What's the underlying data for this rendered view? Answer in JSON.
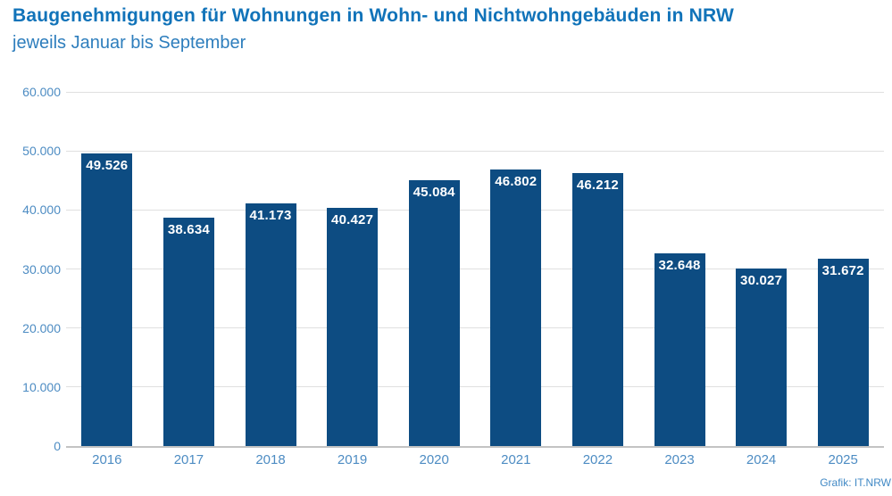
{
  "header": {
    "title": "Baugenehmigungen für Wohnungen in Wohn- und Nichtwohngebäuden in NRW",
    "subtitle": "jeweils Januar bis September"
  },
  "footer": {
    "credit": "Grafik: IT.NRW"
  },
  "colors": {
    "bar": "#0d4c82",
    "title_text": "#1173b9",
    "subtitle_text": "#2e7ebd",
    "axis_label": "#4d8cc3",
    "grid_line": "#e0e0e0",
    "zero_line": "#c3c3c3",
    "value_label": "#ffffff",
    "credit_text": "#4189c5"
  },
  "chart_data": {
    "type": "bar",
    "title": "Baugenehmigungen für Wohnungen in Wohn- und Nichtwohngebäuden in NRW",
    "subtitle": "jeweils Januar bis September",
    "categories": [
      "2016",
      "2017",
      "2018",
      "2019",
      "2020",
      "2021",
      "2022",
      "2023",
      "2024",
      "2025"
    ],
    "values": [
      49526,
      38634,
      41173,
      40427,
      45084,
      46802,
      46212,
      32648,
      30027,
      31672
    ],
    "value_labels": [
      "49.526",
      "38.634",
      "41.173",
      "40.427",
      "45.084",
      "46.802",
      "46.212",
      "32.648",
      "30.027",
      "31.672"
    ],
    "xlabel": "",
    "ylabel": "",
    "ylim": [
      0,
      60000
    ],
    "yticks": [
      {
        "value": 0,
        "label": "0"
      },
      {
        "value": 10000,
        "label": "10.000"
      },
      {
        "value": 20000,
        "label": "20.000"
      },
      {
        "value": 30000,
        "label": "30.000"
      },
      {
        "value": 40000,
        "label": "40.000"
      },
      {
        "value": 50000,
        "label": "50.000"
      },
      {
        "value": 60000,
        "label": "60.000"
      }
    ],
    "grid": "horizontal",
    "legend": "none",
    "value_labels_position": "inside-top",
    "source": "Grafik: IT.NRW"
  }
}
